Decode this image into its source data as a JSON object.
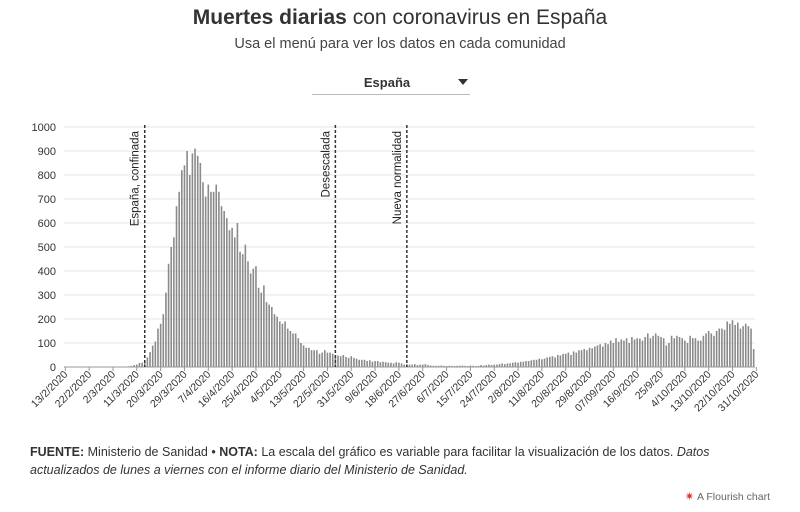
{
  "header": {
    "title_bold": "Muertes diarias",
    "title_rest": " con coronavirus en España",
    "subtitle": "Usa el menú para ver los datos en cada comunidad"
  },
  "dropdown": {
    "selected": "España"
  },
  "footer": {
    "source_label": "FUENTE:",
    "source_text": " Ministerio de Sanidad • ",
    "note_label": "NOTA:",
    "note_text": " La escala del gráfico es variable para facilitar la visualización de los datos. ",
    "note_italic": "Datos actualizados de lunes a viernes con el informe diario del Ministerio de Sanidad."
  },
  "credit": {
    "text": "A Flourish chart"
  },
  "colors": {
    "bar": "#8a8a8a",
    "grid": "#e6e6e6",
    "marker": "#333333"
  },
  "chart_data": {
    "type": "bar",
    "title": "",
    "xlabel": "",
    "ylabel": "",
    "ylim": [
      0,
      1000
    ],
    "y_ticks": [
      0,
      100,
      200,
      300,
      400,
      500,
      600,
      700,
      800,
      900,
      1000
    ],
    "x_start": "2020-02-13",
    "x_end": "2020-11-05",
    "x_tick_labels": [
      "13/2/2020",
      "22/2/2020",
      "2/3/2020",
      "11/3/2020",
      "20/3/2020",
      "29/3/2020",
      "7/4/2020",
      "16/4/2020",
      "25/4/2020",
      "4/5/2020",
      "13/5/2020",
      "22/5/2020",
      "31/5/2020",
      "9/6/2020",
      "18/6/2020",
      "27/6/2020",
      "6/7/2020",
      "15/7/2020",
      "24/7/2020",
      "2/8/2020",
      "11/8/2020",
      "20/8/2020",
      "29/8/2020",
      "07/09/2020",
      "16/9/2020",
      "25/9/20",
      "4/10/2020",
      "13/10/2020",
      "22/10/2020",
      "31/10/2020"
    ],
    "annotations": [
      {
        "date": "2020-03-14",
        "label": "España, confinada"
      },
      {
        "date": "2020-05-25",
        "label": "Desescalada"
      },
      {
        "date": "2020-06-21",
        "label": "Nueva normalidad"
      }
    ],
    "series": [
      {
        "values": [
          0,
          0,
          0,
          0,
          0,
          0,
          0,
          0,
          0,
          0,
          0,
          0,
          0,
          0,
          0,
          0,
          0,
          0,
          1,
          0,
          1,
          1,
          1,
          2,
          3,
          5,
          8,
          10,
          17,
          18,
          27,
          40,
          62,
          89,
          106,
          160,
          180,
          220,
          310,
          430,
          500,
          540,
          670,
          730,
          820,
          840,
          900,
          800,
          890,
          910,
          880,
          850,
          770,
          710,
          760,
          730,
          730,
          760,
          730,
          670,
          650,
          620,
          570,
          580,
          540,
          600,
          480,
          470,
          510,
          440,
          390,
          410,
          420,
          330,
          310,
          340,
          270,
          260,
          250,
          220,
          210,
          190,
          180,
          190,
          160,
          150,
          140,
          140,
          120,
          100,
          90,
          80,
          80,
          70,
          70,
          70,
          55,
          60,
          70,
          60,
          60,
          55,
          45,
          48,
          45,
          50,
          42,
          38,
          45,
          38,
          35,
          30,
          30,
          30,
          25,
          28,
          22,
          25,
          25,
          20,
          22,
          20,
          18,
          18,
          15,
          20,
          18,
          15,
          10,
          12,
          10,
          10,
          12,
          8,
          10,
          10,
          12,
          8,
          6,
          5,
          5,
          5,
          6,
          5,
          4,
          5,
          5,
          4,
          5,
          5,
          6,
          5,
          4,
          6,
          5,
          4,
          5,
          8,
          6,
          8,
          10,
          8,
          10,
          10,
          12,
          15,
          12,
          15,
          15,
          18,
          20,
          18,
          22,
          22,
          25,
          25,
          28,
          30,
          30,
          35,
          32,
          35,
          40,
          42,
          45,
          40,
          50,
          48,
          55,
          55,
          60,
          50,
          65,
          60,
          70,
          70,
          75,
          70,
          80,
          78,
          85,
          90,
          95,
          85,
          100,
          95,
          110,
          100,
          120,
          105,
          115,
          110,
          120,
          100,
          125,
          115,
          120,
          118,
          110,
          125,
          140,
          120,
          130,
          140,
          130,
          125,
          120,
          90,
          100,
          130,
          120,
          130,
          125,
          120,
          110,
          100,
          130,
          120,
          120,
          110,
          110,
          130,
          140,
          150,
          140,
          130,
          150,
          160,
          160,
          155,
          190,
          180,
          195,
          175,
          185,
          160,
          170,
          180,
          170,
          160,
          75
        ]
      }
    ]
  }
}
